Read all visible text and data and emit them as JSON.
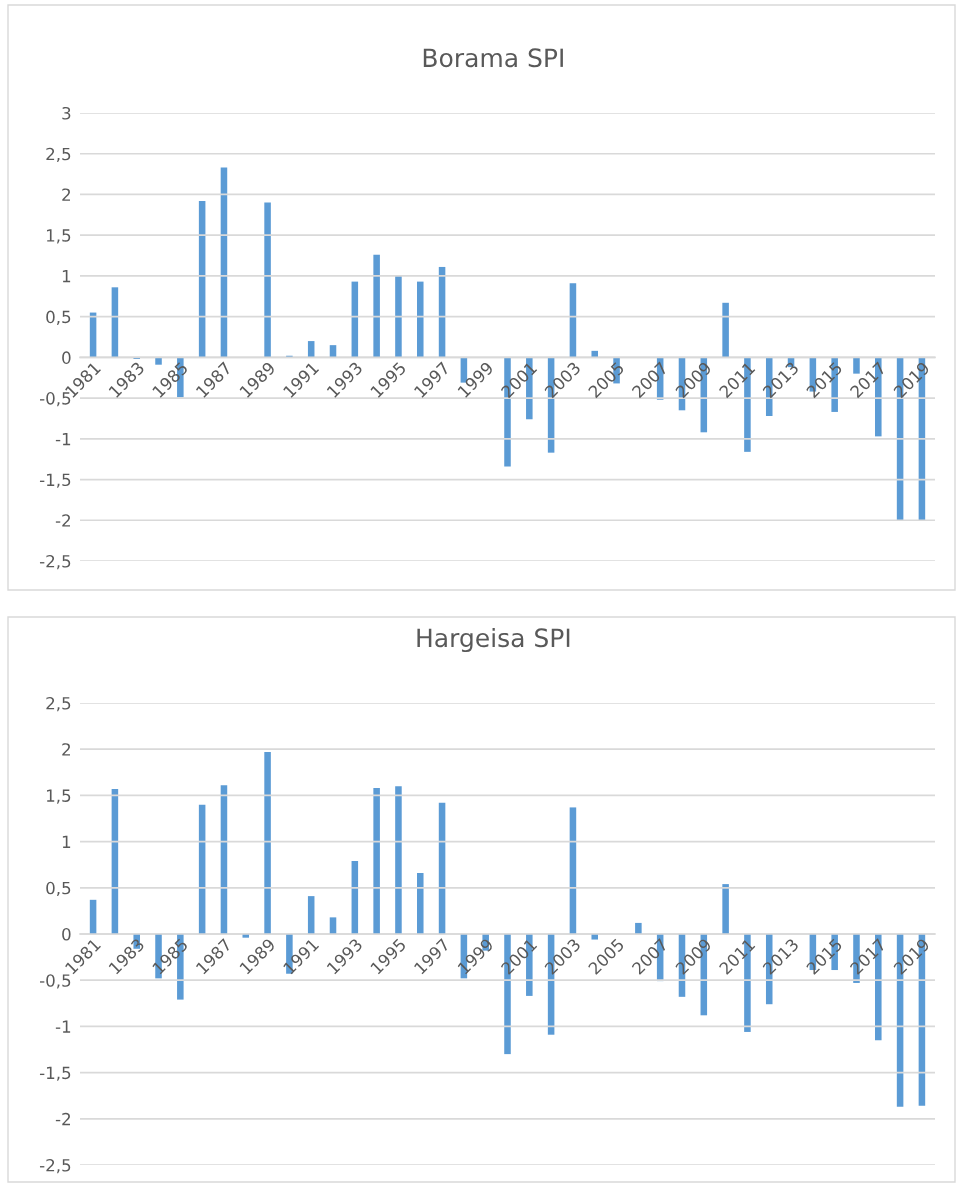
{
  "chart_data": [
    {
      "type": "bar",
      "title": "Borama SPI",
      "color": "#5b9bd5",
      "grid": "y",
      "categories": [
        "1981",
        null,
        "1983",
        null,
        "1985",
        null,
        "1987",
        null,
        "1989",
        null,
        "1991",
        null,
        "1993",
        null,
        "1995",
        null,
        "1997",
        null,
        "1999",
        null,
        "2001",
        null,
        "2003",
        null,
        "2005",
        null,
        "2007",
        null,
        "2009",
        null,
        "2011",
        null,
        "2013",
        null,
        "2015",
        null,
        "2017",
        null,
        "2019"
      ],
      "values": [
        0.55,
        0.86,
        -0.02,
        -0.09,
        -0.49,
        1.92,
        2.33,
        0,
        1.9,
        0.02,
        0.2,
        0.15,
        0.93,
        1.26,
        1.01,
        0.93,
        1.11,
        -0.31,
        0,
        -1.34,
        -0.76,
        -1.17,
        0.91,
        0.08,
        -0.32,
        0,
        -0.52,
        -0.65,
        -0.92,
        0.67,
        -1.16,
        -0.72,
        -0.12,
        -0.42,
        -0.67,
        -0.2,
        -0.97,
        -2.0,
        -2.0
      ],
      "ylim": [
        -2.5,
        3
      ],
      "yticks": [
        {
          "value": -2.5,
          "label": "-2,5"
        },
        -2,
        {
          "value": -1.5,
          "label": "-1,5"
        },
        -1,
        {
          "value": -0.5,
          "label": "-0,5"
        },
        0,
        {
          "value": 0.5,
          "label": "0,5"
        },
        1,
        {
          "value": 1.5,
          "label": "1,5"
        },
        2,
        {
          "value": 2.5,
          "label": "2,5"
        },
        3
      ]
    },
    {
      "type": "bar",
      "title": "Hargeisa SPI",
      "color": "#5b9bd5",
      "grid": "y",
      "categories": [
        "1981",
        null,
        "1983",
        null,
        "1985",
        null,
        "1987",
        null,
        "1989",
        null,
        "1991",
        null,
        "1993",
        null,
        "1995",
        null,
        "1997",
        null,
        "1999",
        null,
        "2001",
        null,
        "2003",
        null,
        "2005",
        null,
        "2007",
        null,
        "2009",
        null,
        "2011",
        null,
        "2013",
        null,
        "2015",
        null,
        "2017",
        null,
        "2019"
      ],
      "values": [
        0.37,
        1.57,
        -0.16,
        -0.48,
        -0.71,
        1.4,
        1.61,
        -0.04,
        1.97,
        -0.43,
        0.41,
        0.18,
        0.79,
        1.58,
        1.6,
        0.66,
        1.42,
        -0.48,
        -0.18,
        -1.3,
        -0.67,
        -1.09,
        1.37,
        -0.06,
        0,
        0.12,
        -0.51,
        -0.68,
        -0.88,
        0.54,
        -1.06,
        -0.76,
        0,
        -0.39,
        -0.39,
        -0.53,
        -1.15,
        -1.87,
        -1.86
      ],
      "ylim": [
        -2.5,
        2.5
      ],
      "yticks": [
        {
          "value": -2.5,
          "label": "-2,5"
        },
        -2,
        {
          "value": -1.5,
          "label": "-1,5"
        },
        -1,
        {
          "value": -0.5,
          "label": "-0,5"
        },
        0,
        {
          "value": 0.5,
          "label": "0,5"
        },
        1,
        {
          "value": 1.5,
          "label": "1,5"
        },
        2,
        {
          "value": 2.5,
          "label": "2,5"
        }
      ]
    }
  ]
}
